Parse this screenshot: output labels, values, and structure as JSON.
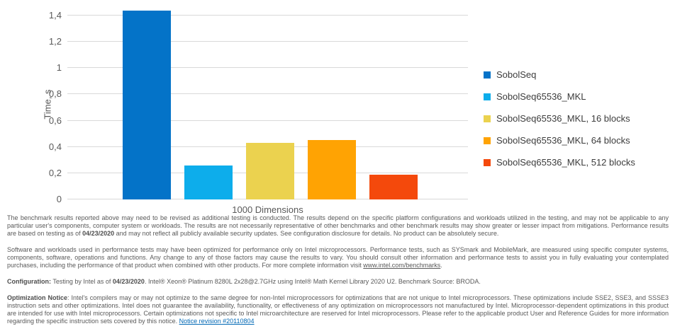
{
  "chart_data": {
    "type": "bar",
    "categories": [
      "1000 Dimensions"
    ],
    "series": [
      {
        "name": "SobolSeq",
        "color": "#0473C8",
        "values": [
          1.44
        ]
      },
      {
        "name": "SobolSeq65536_MKL",
        "color": "#0DADEB",
        "values": [
          0.26
        ]
      },
      {
        "name": "SobolSeq65536_MKL, 16 blocks",
        "color": "#EBD24F",
        "values": [
          0.43
        ]
      },
      {
        "name": "SobolSeq65536_MKL, 64 blocks",
        "color": "#FFA303",
        "values": [
          0.45
        ]
      },
      {
        "name": "SobolSeq65536_MKL, 512 blocks",
        "color": "#F4490C",
        "values": [
          0.19
        ]
      }
    ],
    "title": "",
    "xlabel": "1000 Dimensions",
    "ylabel": "Time, s",
    "ylim": [
      0,
      1.4
    ],
    "ytick_step": 0.2,
    "ytick_labels": [
      "0",
      "0,2",
      "0,4",
      "0,6",
      "0,8",
      "1",
      "1,2",
      "1,4"
    ],
    "grid": true,
    "legend_position": "right",
    "gridline_color": "#d9d9d9"
  },
  "disclaimer": {
    "para1": {
      "t0": "The benchmark results reported above may need to be revised as additional testing is conducted. The results depend on the specific platform configurations and workloads utilized in the testing, and may not be applicable to any particular user's components, computer system or workloads. The results are not necessarily representative of other benchmarks and other benchmark results may show greater or lesser impact from mitigations. Performance results are based on testing as of ",
      "t1": "04/23/2020",
      "t2": " and may not reflect all publicly available security updates. See configuration disclosure for details. No product can be absolutely secure."
    },
    "para2": {
      "t0": "Software and workloads used in performance tests may have been optimized for performance only on Intel microprocessors. Performance tests, such as SYSmark and MobileMark, are measured using specific computer systems, components, software, operations and functions. Any change to any of those factors may cause the results to vary. You should consult other information and performance tests to assist you in fully evaluating your contemplated purchases, including the performance of that product when combined with other products. For more complete information visit ",
      "link": "www.intel.com/benchmarks",
      "t1": "."
    },
    "config": {
      "label": "Configuration:",
      "t0": " Testing by Intel as of ",
      "t1": "04/23/2020",
      "t2": ". Intel® Xeon® Platinum 8280L 2x28@2.7GHz using Intel® Math Kernel Library 2020 U2. Benchmark Source: BRODA."
    },
    "optimization": {
      "label": "Optimization Notice",
      "t0": ": Intel's compilers may or may not optimize to the same degree for non-Intel microprocessors for optimizations that are not unique to Intel microprocessors. These optimizations include SSE2, SSE3, and SSSE3 instruction sets and other optimizations. Intel does not guarantee the availability, functionality, or effectiveness of any optimization on microprocessors not manufactured by Intel. Microprocessor-dependent optimizations in this product are intended for use with Intel microprocessors. Certain optimizations not specific to Intel microarchitecture are reserved for Intel microprocessors. Please refer to the applicable product User and Reference Guides for more information regarding the specific instruction sets covered by this notice. ",
      "link": "Notice revision #20110804"
    }
  }
}
